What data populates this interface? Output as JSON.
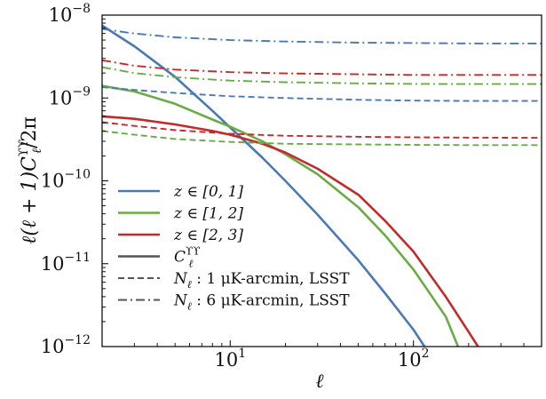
{
  "chart_data": {
    "type": "line",
    "title": "",
    "xlabel": "ℓ",
    "ylabel": "ℓ(ℓ + 1)C",
    "ylabel_sub": "ℓ",
    "ylabel_sup": "ϒϒ",
    "ylabel_tail": "/2π",
    "xscale": "log",
    "yscale": "log",
    "xlim": [
      2,
      500
    ],
    "ylim": [
      1e-12,
      1e-08
    ],
    "grid": false,
    "legend_position": "lower-left",
    "x_ticks": [
      {
        "value": 10,
        "base": "10",
        "exp": "1"
      },
      {
        "value": 100,
        "base": "10",
        "exp": "2"
      }
    ],
    "y_ticks": [
      {
        "value": 1e-08,
        "base": "10",
        "exp": "−8"
      },
      {
        "value": 1e-09,
        "base": "10",
        "exp": "−9"
      },
      {
        "value": 1e-10,
        "base": "10",
        "exp": "−10"
      },
      {
        "value": 1e-11,
        "base": "10",
        "exp": "−11"
      },
      {
        "value": 1e-12,
        "base": "10",
        "exp": "−12"
      }
    ],
    "colors": {
      "blue": "#4a7ab3",
      "green": "#6aac44",
      "red": "#c42a2c",
      "gray": "#555555"
    },
    "legend": [
      {
        "label": "z ∈ [0, 1]",
        "color": "#4a7ab3",
        "style": "solid"
      },
      {
        "label": "z ∈ [1, 2]",
        "color": "#6aac44",
        "style": "solid"
      },
      {
        "label": "z ∈ [2, 3]",
        "color": "#c42a2c",
        "style": "solid"
      },
      {
        "label": "C",
        "sub": "ℓ",
        "sup": "ϒϒ",
        "color": "#555555",
        "style": "solid"
      },
      {
        "label": "N",
        "sub": "ℓ",
        "tail": " : 1 μK-arcmin, LSST",
        "color": "#555555",
        "style": "dashed"
      },
      {
        "label": "N",
        "sub": "ℓ",
        "tail": " : 6 μK-arcmin, LSST",
        "color": "#555555",
        "style": "dashdot"
      }
    ],
    "series": [
      {
        "color": "#4a7ab3",
        "style": "solid",
        "x": [
          2,
          3,
          5,
          8,
          10,
          15,
          20,
          30,
          50,
          70,
          100,
          115
        ],
        "y": [
          7.5e-09,
          4.2e-09,
          1.8e-09,
          7e-10,
          4.4e-10,
          1.9e-10,
          1e-10,
          3.9e-11,
          1.1e-11,
          4.4e-12,
          1.6e-12,
          1e-12
        ]
      },
      {
        "color": "#6aac44",
        "style": "solid",
        "x": [
          2,
          3,
          5,
          8,
          10,
          15,
          20,
          30,
          50,
          70,
          100,
          150,
          175
        ],
        "y": [
          1.4e-09,
          1.2e-09,
          8.5e-10,
          5.5e-10,
          4.5e-10,
          3e-10,
          2.1e-10,
          1.2e-10,
          4.8e-11,
          2.2e-11,
          8.5e-12,
          2.3e-12,
          1e-12
        ]
      },
      {
        "color": "#c42a2c",
        "style": "solid",
        "x": [
          2,
          3,
          5,
          8,
          10,
          15,
          20,
          30,
          50,
          70,
          100,
          150,
          200,
          225
        ],
        "y": [
          6e-10,
          5.6e-10,
          4.8e-10,
          4e-10,
          3.6e-10,
          2.8e-10,
          2.2e-10,
          1.4e-10,
          6.8e-11,
          3.3e-11,
          1.4e-11,
          4e-12,
          1.5e-12,
          1e-12
        ]
      },
      {
        "color": "#4a7ab3",
        "style": "dashed",
        "x": [
          2,
          3,
          5,
          10,
          20,
          50,
          100,
          200,
          500
        ],
        "y": [
          1.35e-09,
          1.25e-09,
          1.15e-09,
          1.05e-09,
          1e-09,
          9.5e-10,
          9.3e-10,
          9.2e-10,
          9.2e-10
        ]
      },
      {
        "color": "#6aac44",
        "style": "dashed",
        "x": [
          2,
          3,
          5,
          10,
          20,
          50,
          100,
          200,
          500
        ],
        "y": [
          4e-10,
          3.6e-10,
          3.2e-10,
          2.95e-10,
          2.8e-10,
          2.75e-10,
          2.72e-10,
          2.7e-10,
          2.7e-10
        ]
      },
      {
        "color": "#c42a2c",
        "style": "dashed",
        "x": [
          2,
          3,
          5,
          10,
          20,
          50,
          100,
          200,
          500
        ],
        "y": [
          5.1e-10,
          4.6e-10,
          4.1e-10,
          3.7e-10,
          3.5e-10,
          3.4e-10,
          3.35e-10,
          3.32e-10,
          3.3e-10
        ]
      },
      {
        "color": "#4a7ab3",
        "style": "dashdot",
        "x": [
          2,
          3,
          5,
          10,
          20,
          50,
          100,
          200,
          500
        ],
        "y": [
          6.8e-09,
          6e-09,
          5.4e-09,
          5e-09,
          4.8e-09,
          4.65e-09,
          4.6e-09,
          4.55e-09,
          4.55e-09
        ]
      },
      {
        "color": "#c42a2c",
        "style": "dashdot",
        "x": [
          2,
          3,
          5,
          10,
          20,
          50,
          100,
          200,
          500
        ],
        "y": [
          2.85e-09,
          2.45e-09,
          2.2e-09,
          2.05e-09,
          1.98e-09,
          1.93e-09,
          1.9e-09,
          1.9e-09,
          1.9e-09
        ]
      },
      {
        "color": "#6aac44",
        "style": "dashdot",
        "x": [
          2,
          3,
          5,
          10,
          20,
          50,
          100,
          200,
          500
        ],
        "y": [
          2.35e-09,
          2e-09,
          1.78e-09,
          1.62e-09,
          1.55e-09,
          1.5e-09,
          1.48e-09,
          1.47e-09,
          1.47e-09
        ]
      }
    ]
  }
}
